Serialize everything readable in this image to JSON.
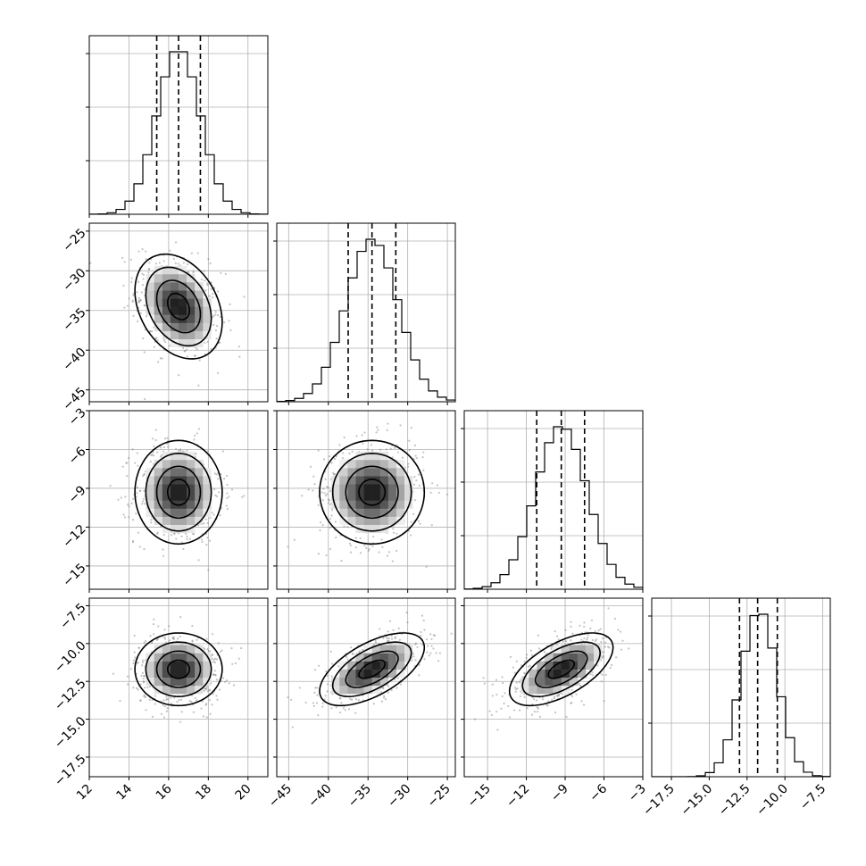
{
  "chart_data": {
    "type": "scatter",
    "title": "",
    "labels": [],
    "parameters": [
      {
        "index": 0,
        "mean": 16.5,
        "sd": 1.1,
        "range": [
          12,
          21
        ],
        "quantiles": [
          15.4,
          16.5,
          17.6
        ],
        "ticks": [
          12,
          14,
          16,
          18,
          20
        ],
        "tick_labels": [
          "12",
          "14",
          "16",
          "18",
          "20"
        ]
      },
      {
        "index": 1,
        "mean": -34.5,
        "sd": 3.3,
        "range": [
          -46.5,
          -24
        ],
        "quantiles": [
          -37.5,
          -34.5,
          -31.5
        ],
        "ticks": [
          -45,
          -40,
          -35,
          -30,
          -25
        ],
        "tick_labels": [
          "−45",
          "−40",
          "−35",
          "−30",
          "−25"
        ]
      },
      {
        "index": 2,
        "mean": -9.3,
        "sd": 2.0,
        "range": [
          -16.8,
          -3
        ],
        "quantiles": [
          -11.2,
          -9.3,
          -7.5
        ],
        "ticks": [
          -15,
          -12,
          -9,
          -6,
          -3
        ],
        "tick_labels": [
          "−15",
          "−12",
          "−9",
          "−6",
          "−3"
        ]
      },
      {
        "index": 3,
        "mean": -11.7,
        "sd": 1.2,
        "range": [
          -18.8,
          -7
        ],
        "quantiles": [
          -13.0,
          -11.8,
          -10.5
        ],
        "ticks": [
          -17.5,
          -15,
          -12.5,
          -10,
          -7.5
        ],
        "tick_labels": [
          "−17.5",
          "−15.0",
          "−12.5",
          "−10.0",
          "−7.5"
        ]
      }
    ],
    "correlations": [
      [
        1,
        -0.3,
        0,
        0
      ],
      [
        -0.3,
        1,
        0,
        0.6
      ],
      [
        0,
        0,
        1,
        0.6
      ],
      [
        0,
        0.6,
        0.6,
        1
      ]
    ],
    "histogram_bins": 20,
    "contour_levels_sigma": [
      0.5,
      1.0,
      1.5,
      2.0
    ],
    "grid": true,
    "colors": {
      "line": "#000000",
      "points": "#7a7a7a",
      "grid": "#b0b0b0"
    }
  }
}
